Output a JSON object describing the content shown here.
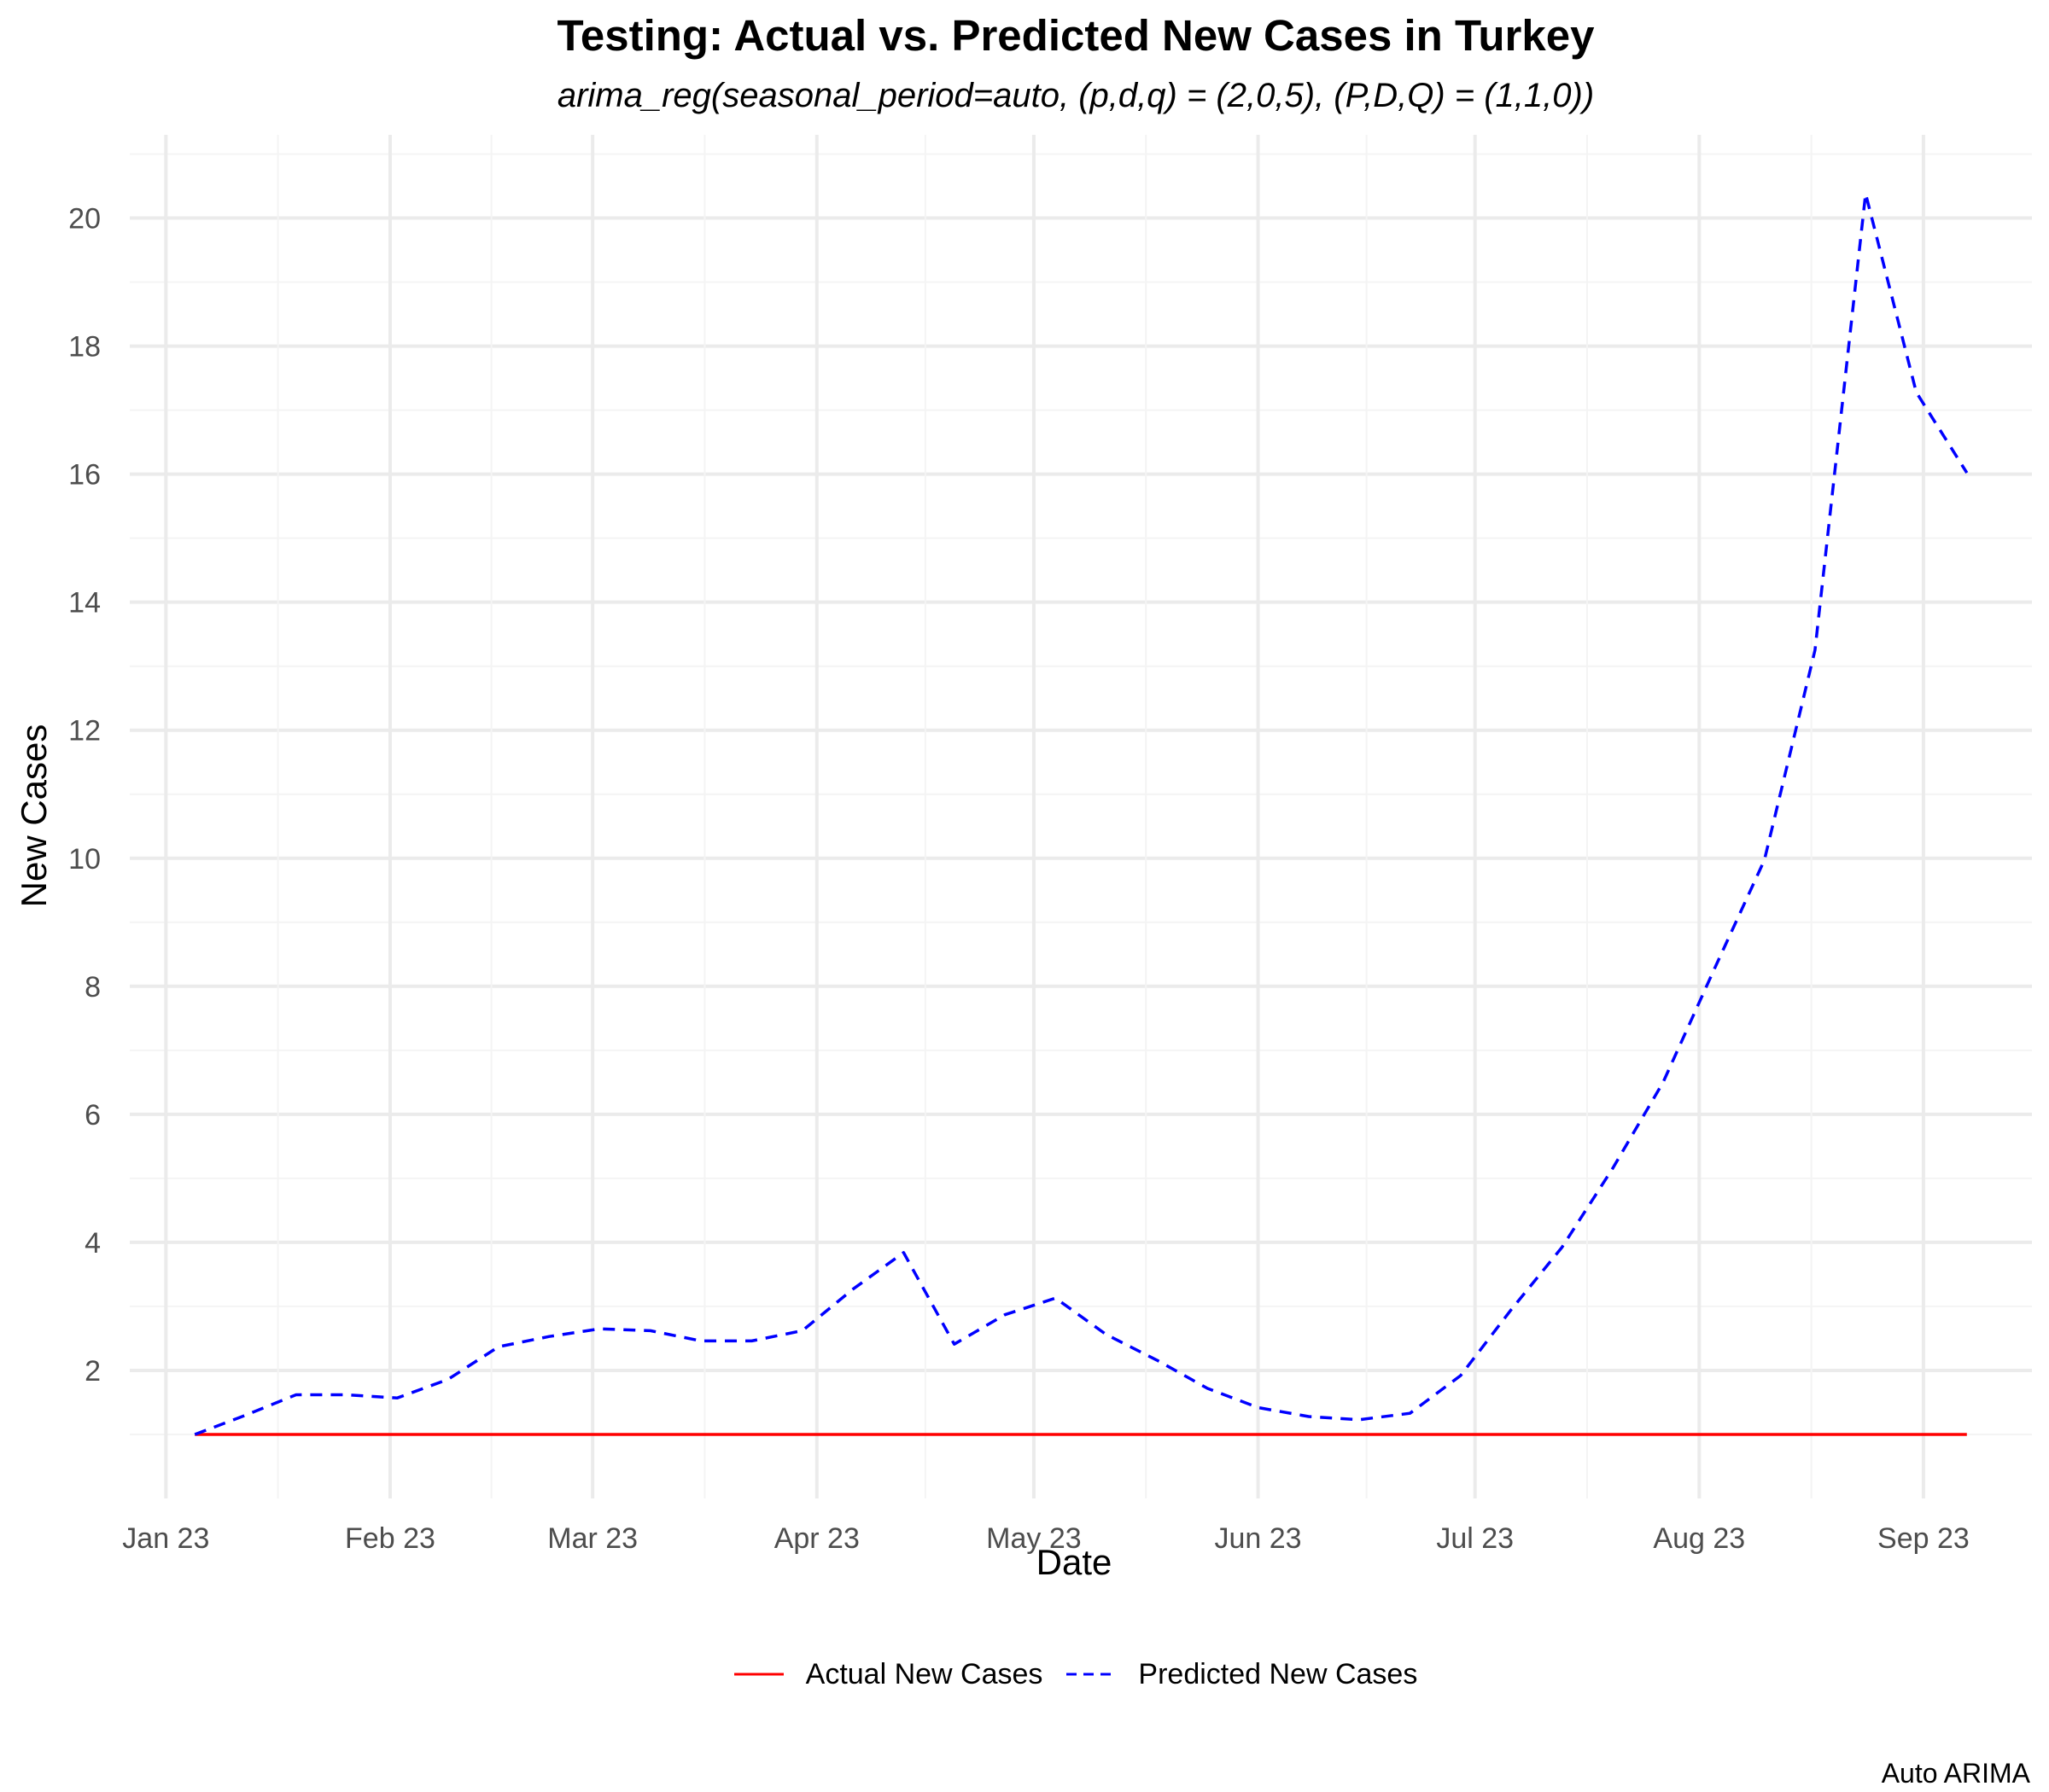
{
  "title": "Testing: Actual vs. Predicted New Cases in Turkey",
  "subtitle": "arima_reg(seasonal_period=auto, (p,d,q) = (2,0,5), (P,D,Q) = (1,1,0))",
  "caption": "Auto ARIMA",
  "legend": {
    "position": "bottom"
  },
  "colors": {
    "actual": "#ff0000",
    "predicted": "#0000ff",
    "grid": "#ebebeb"
  },
  "chart_data": {
    "type": "line",
    "title": "Testing: Actual vs. Predicted New Cases in Turkey",
    "subtitle": "arima_reg(seasonal_period=auto, (p,d,q) = (2,0,5), (P,D,Q) = (1,1,0))",
    "xlabel": "Date",
    "ylabel": "New Cases",
    "x_type": "date",
    "xlim": [
      "2022-12-27",
      "2023-09-16"
    ],
    "ylim": [
      0,
      21.3
    ],
    "x_ticks": [
      {
        "date": "2023-01-01",
        "label": "Jan 23"
      },
      {
        "date": "2023-02-01",
        "label": "Feb 23"
      },
      {
        "date": "2023-03-01",
        "label": "Mar 23"
      },
      {
        "date": "2023-04-01",
        "label": "Apr 23"
      },
      {
        "date": "2023-05-01",
        "label": "May 23"
      },
      {
        "date": "2023-06-01",
        "label": "Jun 23"
      },
      {
        "date": "2023-07-01",
        "label": "Jul 23"
      },
      {
        "date": "2023-08-01",
        "label": "Aug 23"
      },
      {
        "date": "2023-09-01",
        "label": "Sep 23"
      }
    ],
    "y_ticks": [
      2,
      4,
      6,
      8,
      10,
      12,
      14,
      16,
      18,
      20
    ],
    "grid": true,
    "series": [
      {
        "name": "Actual New Cases",
        "style": "solid",
        "color": "#ff0000",
        "points": [
          {
            "x": "2023-01-05",
            "y": 1
          },
          {
            "x": "2023-09-07",
            "y": 1
          }
        ]
      },
      {
        "name": "Predicted New Cases",
        "style": "dashed",
        "color": "#0000ff",
        "points": [
          {
            "x": "2023-01-05",
            "y": 1.0
          },
          {
            "x": "2023-01-12",
            "y": 1.3
          },
          {
            "x": "2023-01-19",
            "y": 1.62
          },
          {
            "x": "2023-01-26",
            "y": 1.62
          },
          {
            "x": "2023-02-02",
            "y": 1.57
          },
          {
            "x": "2023-02-09",
            "y": 1.86
          },
          {
            "x": "2023-02-16",
            "y": 2.37
          },
          {
            "x": "2023-02-23",
            "y": 2.53
          },
          {
            "x": "2023-03-02",
            "y": 2.65
          },
          {
            "x": "2023-03-09",
            "y": 2.62
          },
          {
            "x": "2023-03-16",
            "y": 2.46
          },
          {
            "x": "2023-03-23",
            "y": 2.46
          },
          {
            "x": "2023-03-30",
            "y": 2.62
          },
          {
            "x": "2023-04-06",
            "y": 3.27
          },
          {
            "x": "2023-04-13",
            "y": 3.84
          },
          {
            "x": "2023-04-20",
            "y": 2.41
          },
          {
            "x": "2023-04-27",
            "y": 2.87
          },
          {
            "x": "2023-05-04",
            "y": 3.13
          },
          {
            "x": "2023-05-11",
            "y": 2.56
          },
          {
            "x": "2023-05-18",
            "y": 2.16
          },
          {
            "x": "2023-05-25",
            "y": 1.72
          },
          {
            "x": "2023-06-01",
            "y": 1.42
          },
          {
            "x": "2023-06-08",
            "y": 1.28
          },
          {
            "x": "2023-06-15",
            "y": 1.23
          },
          {
            "x": "2023-06-22",
            "y": 1.33
          },
          {
            "x": "2023-06-29",
            "y": 1.92
          },
          {
            "x": "2023-07-06",
            "y": 2.95
          },
          {
            "x": "2023-07-13",
            "y": 3.92
          },
          {
            "x": "2023-07-20",
            "y": 5.15
          },
          {
            "x": "2023-07-27",
            "y": 6.5
          },
          {
            "x": "2023-08-03",
            "y": 8.25
          },
          {
            "x": "2023-08-10",
            "y": 9.97
          },
          {
            "x": "2023-08-17",
            "y": 13.25
          },
          {
            "x": "2023-08-24",
            "y": 20.38
          },
          {
            "x": "2023-08-31",
            "y": 17.28
          },
          {
            "x": "2023-09-07",
            "y": 16.02
          }
        ]
      }
    ]
  }
}
